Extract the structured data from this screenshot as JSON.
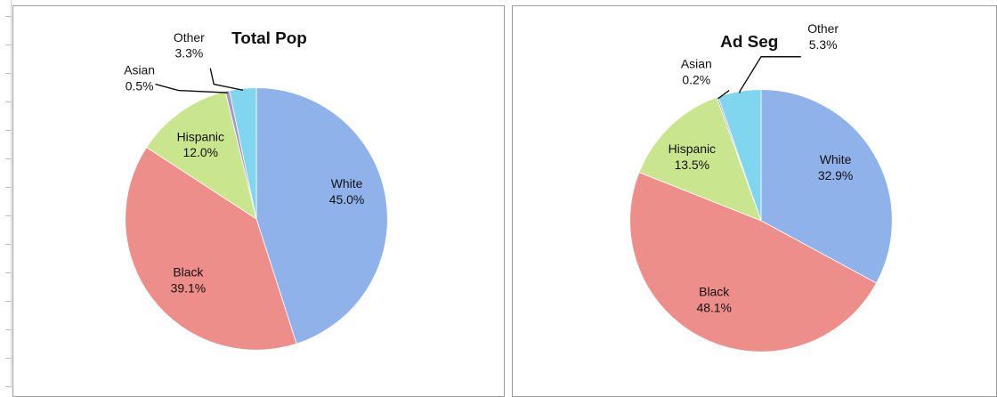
{
  "chart_data": [
    {
      "type": "pie",
      "title": "Total Pop",
      "slices": [
        {
          "label": "White",
          "value": 45.0,
          "value_label": "45.0%",
          "color": "#8fb2ea"
        },
        {
          "label": "Black",
          "value": 39.1,
          "value_label": "39.1%",
          "color": "#ee8e8a"
        },
        {
          "label": "Hispanic",
          "value": 12.0,
          "value_label": "12.0%",
          "color": "#c9e68e"
        },
        {
          "label": "Asian",
          "value": 0.5,
          "value_label": "0.5%",
          "color": "#a995cc"
        },
        {
          "label": "Other",
          "value": 3.3,
          "value_label": "3.3%",
          "color": "#7fd6ee"
        }
      ]
    },
    {
      "type": "pie",
      "title": "Ad Seg",
      "slices": [
        {
          "label": "White",
          "value": 32.9,
          "value_label": "32.9%",
          "color": "#8fb2ea"
        },
        {
          "label": "Black",
          "value": 48.1,
          "value_label": "48.1%",
          "color": "#ee8e8a"
        },
        {
          "label": "Hispanic",
          "value": 13.5,
          "value_label": "13.5%",
          "color": "#c9e68e"
        },
        {
          "label": "Asian",
          "value": 0.2,
          "value_label": "0.2%",
          "color": "#a995cc"
        },
        {
          "label": "Other",
          "value": 5.3,
          "value_label": "5.3%",
          "color": "#7fd6ee"
        }
      ]
    }
  ]
}
